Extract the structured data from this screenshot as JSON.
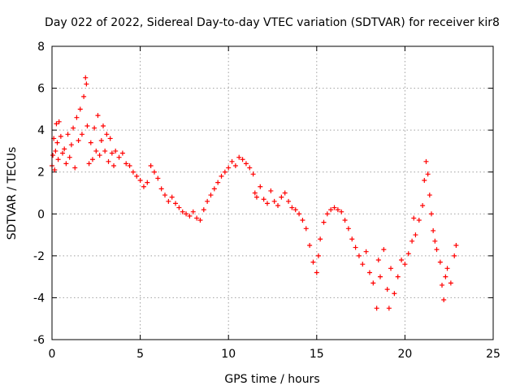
{
  "chart_data": {
    "type": "scatter",
    "title": "Day 022 of 2022, Sidereal Day-to-day VTEC variation (SDTVAR) for receiver kir8",
    "xlabel": "GPS time / hours",
    "ylabel": "SDTVAR / TECUs",
    "xlim": [
      0,
      25
    ],
    "ylim": [
      -6,
      8
    ],
    "xticks": [
      0,
      5,
      10,
      15,
      20,
      25
    ],
    "yticks": [
      -6,
      -4,
      -2,
      0,
      2,
      4,
      6,
      8
    ],
    "grid": true,
    "marker": "+",
    "series": [
      {
        "name": "SDTVAR",
        "color": "#ff0000",
        "points": [
          [
            0.0,
            2.3
          ],
          [
            0.05,
            2.8
          ],
          [
            0.1,
            3.6
          ],
          [
            0.15,
            2.1
          ],
          [
            0.2,
            3.0
          ],
          [
            0.25,
            4.3
          ],
          [
            0.3,
            3.4
          ],
          [
            0.35,
            2.6
          ],
          [
            0.4,
            4.4
          ],
          [
            0.5,
            3.7
          ],
          [
            0.6,
            2.9
          ],
          [
            0.7,
            3.1
          ],
          [
            0.8,
            2.4
          ],
          [
            0.9,
            3.8
          ],
          [
            1.0,
            2.7
          ],
          [
            1.1,
            3.3
          ],
          [
            1.2,
            4.1
          ],
          [
            1.3,
            2.2
          ],
          [
            1.4,
            4.6
          ],
          [
            1.5,
            3.5
          ],
          [
            1.6,
            5.0
          ],
          [
            1.7,
            3.8
          ],
          [
            1.8,
            5.6
          ],
          [
            1.9,
            6.5
          ],
          [
            1.95,
            6.2
          ],
          [
            2.0,
            4.2
          ],
          [
            2.1,
            2.4
          ],
          [
            2.2,
            3.4
          ],
          [
            2.3,
            2.6
          ],
          [
            2.4,
            4.1
          ],
          [
            2.5,
            3.0
          ],
          [
            2.6,
            4.7
          ],
          [
            2.7,
            2.8
          ],
          [
            2.8,
            3.5
          ],
          [
            2.9,
            4.2
          ],
          [
            3.0,
            3.0
          ],
          [
            3.1,
            3.8
          ],
          [
            3.2,
            2.5
          ],
          [
            3.3,
            3.6
          ],
          [
            3.4,
            2.9
          ],
          [
            3.5,
            2.3
          ],
          [
            3.6,
            3.0
          ],
          [
            3.8,
            2.7
          ],
          [
            4.0,
            2.9
          ],
          [
            4.2,
            2.4
          ],
          [
            4.4,
            2.3
          ],
          [
            4.6,
            2.0
          ],
          [
            4.8,
            1.8
          ],
          [
            5.0,
            1.6
          ],
          [
            5.2,
            1.3
          ],
          [
            5.4,
            1.5
          ],
          [
            5.6,
            2.3
          ],
          [
            5.8,
            2.0
          ],
          [
            6.0,
            1.7
          ],
          [
            6.2,
            1.2
          ],
          [
            6.4,
            0.9
          ],
          [
            6.6,
            0.6
          ],
          [
            6.8,
            0.8
          ],
          [
            7.0,
            0.5
          ],
          [
            7.2,
            0.3
          ],
          [
            7.4,
            0.1
          ],
          [
            7.6,
            0.0
          ],
          [
            7.8,
            -0.1
          ],
          [
            8.0,
            0.1
          ],
          [
            8.2,
            -0.2
          ],
          [
            8.4,
            -0.3
          ],
          [
            8.6,
            0.2
          ],
          [
            8.8,
            0.6
          ],
          [
            9.0,
            0.9
          ],
          [
            9.2,
            1.2
          ],
          [
            9.4,
            1.5
          ],
          [
            9.6,
            1.8
          ],
          [
            9.8,
            2.0
          ],
          [
            10.0,
            2.2
          ],
          [
            10.2,
            2.5
          ],
          [
            10.4,
            2.3
          ],
          [
            10.6,
            2.7
          ],
          [
            10.8,
            2.6
          ],
          [
            11.0,
            2.4
          ],
          [
            11.2,
            2.2
          ],
          [
            11.4,
            1.9
          ],
          [
            11.5,
            1.0
          ],
          [
            11.6,
            0.8
          ],
          [
            11.8,
            1.3
          ],
          [
            12.0,
            0.7
          ],
          [
            12.2,
            0.5
          ],
          [
            12.4,
            1.1
          ],
          [
            12.6,
            0.6
          ],
          [
            12.8,
            0.4
          ],
          [
            13.0,
            0.8
          ],
          [
            13.2,
            1.0
          ],
          [
            13.4,
            0.6
          ],
          [
            13.6,
            0.3
          ],
          [
            13.8,
            0.2
          ],
          [
            14.0,
            0.0
          ],
          [
            14.2,
            -0.3
          ],
          [
            14.4,
            -0.7
          ],
          [
            14.6,
            -1.5
          ],
          [
            14.8,
            -2.3
          ],
          [
            15.0,
            -2.8
          ],
          [
            15.1,
            -2.0
          ],
          [
            15.2,
            -1.2
          ],
          [
            15.4,
            -0.4
          ],
          [
            15.6,
            0.0
          ],
          [
            15.8,
            0.2
          ],
          [
            16.0,
            0.3
          ],
          [
            16.2,
            0.2
          ],
          [
            16.4,
            0.1
          ],
          [
            16.6,
            -0.3
          ],
          [
            16.8,
            -0.7
          ],
          [
            17.0,
            -1.2
          ],
          [
            17.2,
            -1.6
          ],
          [
            17.4,
            -2.0
          ],
          [
            17.6,
            -2.4
          ],
          [
            17.8,
            -1.8
          ],
          [
            18.0,
            -2.8
          ],
          [
            18.2,
            -3.3
          ],
          [
            18.4,
            -4.5
          ],
          [
            18.5,
            -2.2
          ],
          [
            18.6,
            -3.0
          ],
          [
            18.8,
            -1.7
          ],
          [
            19.0,
            -3.6
          ],
          [
            19.1,
            -4.5
          ],
          [
            19.2,
            -2.6
          ],
          [
            19.4,
            -3.8
          ],
          [
            19.6,
            -3.0
          ],
          [
            19.8,
            -2.2
          ],
          [
            20.0,
            -2.4
          ],
          [
            20.2,
            -1.9
          ],
          [
            20.4,
            -1.3
          ],
          [
            20.5,
            -0.2
          ],
          [
            20.6,
            -1.0
          ],
          [
            20.8,
            -0.3
          ],
          [
            21.0,
            0.4
          ],
          [
            21.1,
            1.6
          ],
          [
            21.2,
            2.5
          ],
          [
            21.3,
            1.9
          ],
          [
            21.4,
            0.9
          ],
          [
            21.5,
            0.0
          ],
          [
            21.6,
            -0.8
          ],
          [
            21.7,
            -1.3
          ],
          [
            21.8,
            -1.7
          ],
          [
            22.0,
            -2.3
          ],
          [
            22.1,
            -3.4
          ],
          [
            22.2,
            -4.1
          ],
          [
            22.3,
            -3.0
          ],
          [
            22.4,
            -2.6
          ],
          [
            22.6,
            -3.3
          ],
          [
            22.8,
            -2.0
          ],
          [
            22.9,
            -1.5
          ]
        ]
      }
    ]
  }
}
